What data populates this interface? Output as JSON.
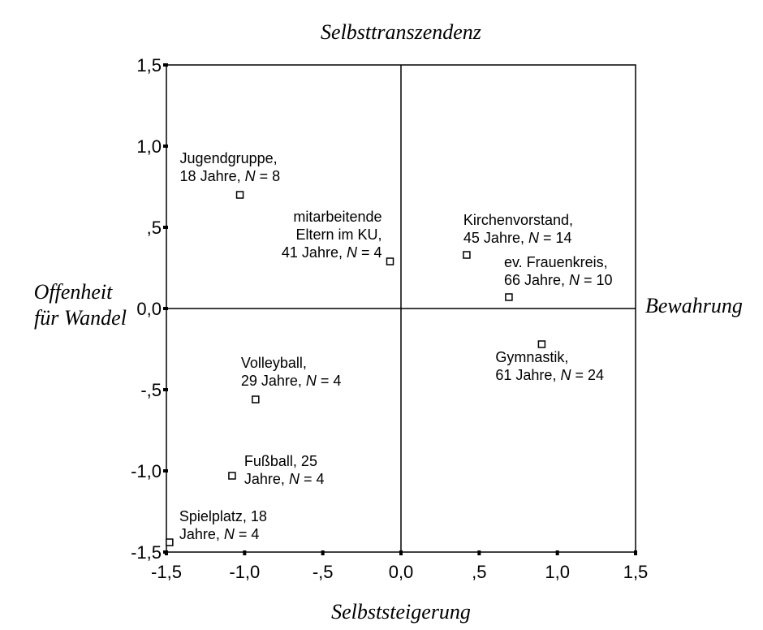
{
  "chart_data": {
    "type": "scatter",
    "xlim": [
      -1.5,
      1.5
    ],
    "ylim": [
      -1.5,
      1.5
    ],
    "x_ticks": [
      {
        "value": -1.5,
        "label": "-1,5"
      },
      {
        "value": -1.0,
        "label": "-1,0"
      },
      {
        "value": -0.5,
        "label": "-,5"
      },
      {
        "value": 0.0,
        "label": "0,0"
      },
      {
        "value": 0.5,
        "label": ",5"
      },
      {
        "value": 1.0,
        "label": "1,0"
      },
      {
        "value": 1.5,
        "label": "1,5"
      }
    ],
    "y_ticks": [
      {
        "value": 1.5,
        "label": "1,5"
      },
      {
        "value": 1.0,
        "label": "1,0"
      },
      {
        "value": 0.5,
        "label": ",5"
      },
      {
        "value": 0.0,
        "label": "0,0"
      },
      {
        "value": -0.5,
        "label": "-,5"
      },
      {
        "value": -1.0,
        "label": "-1,0"
      },
      {
        "value": -1.5,
        "label": "-1,5"
      }
    ],
    "axis_titles": {
      "top": "Selbsttranszendenz",
      "bottom": "Selbststeigerung",
      "left_line1": "Offenheit",
      "left_line2": "für Wandel",
      "right": "Bewahrung"
    },
    "points": [
      {
        "x": -1.03,
        "y": 0.7,
        "lines": [
          [
            {
              "t": "Jugendgruppe,"
            }
          ],
          [
            {
              "t": "18 Jahre, "
            },
            {
              "t": "N",
              "i": true
            },
            {
              "t": " = 8"
            }
          ]
        ]
      },
      {
        "x": -0.07,
        "y": 0.29,
        "lines": [
          [
            {
              "t": "mitarbeitende"
            }
          ],
          [
            {
              "t": "Eltern im KU,"
            }
          ],
          [
            {
              "t": "41 Jahre, "
            },
            {
              "t": "N",
              "i": true
            },
            {
              "t": " = 4"
            }
          ]
        ]
      },
      {
        "x": 0.42,
        "y": 0.33,
        "lines": [
          [
            {
              "t": "Kirchenvorstand,"
            }
          ],
          [
            {
              "t": "45 Jahre, "
            },
            {
              "t": "N",
              "i": true
            },
            {
              "t": " = 14"
            }
          ]
        ]
      },
      {
        "x": 0.69,
        "y": 0.07,
        "lines": [
          [
            {
              "t": "ev. Frauenkreis,"
            }
          ],
          [
            {
              "t": "66 Jahre, "
            },
            {
              "t": "N",
              "i": true
            },
            {
              "t": " = 10"
            }
          ]
        ]
      },
      {
        "x": 0.9,
        "y": -0.22,
        "lines": [
          [
            {
              "t": "Gymnastik,"
            }
          ],
          [
            {
              "t": "61 Jahre, "
            },
            {
              "t": "N",
              "i": true
            },
            {
              "t": " = 24"
            }
          ]
        ]
      },
      {
        "x": -0.93,
        "y": -0.56,
        "lines": [
          [
            {
              "t": "Volleyball,"
            }
          ],
          [
            {
              "t": "29 Jahre, "
            },
            {
              "t": "N",
              "i": true
            },
            {
              "t": " = 4"
            }
          ]
        ]
      },
      {
        "x": -1.08,
        "y": -1.03,
        "lines": [
          [
            {
              "t": "Fußball, 25"
            }
          ],
          [
            {
              "t": "Jahre, "
            },
            {
              "t": "N",
              "i": true
            },
            {
              "t": " = 4"
            }
          ]
        ]
      },
      {
        "x": -1.48,
        "y": -1.44,
        "lines": [
          [
            {
              "t": "Spielplatz, 18"
            }
          ],
          [
            {
              "t": "Jahre, "
            },
            {
              "t": "N",
              "i": true
            },
            {
              "t": " = 4"
            }
          ]
        ]
      }
    ]
  }
}
